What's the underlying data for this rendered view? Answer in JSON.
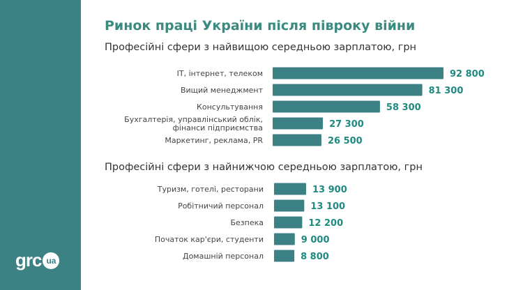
{
  "title": "Ринок праці України після півроку війни",
  "logo": {
    "text": "grc",
    "badge": "ua"
  },
  "colors": {
    "bar": "#3c8284",
    "value": "#1f8a80",
    "sidebar": "#3c8284"
  },
  "chart_data": [
    {
      "type": "bar",
      "orientation": "horizontal",
      "title": "Професійні сфери з найвищою середньою зарплатою, грн",
      "categories": [
        [
          "IT, інтернет, телеком"
        ],
        [
          "Вищий менеджмент"
        ],
        [
          "Консультування"
        ],
        [
          "Бухгалтерія, управлінський облік,",
          "фінанси підприємства"
        ],
        [
          "Маркетинг, реклама, PR"
        ]
      ],
      "values": [
        92800,
        81300,
        58300,
        27300,
        26500
      ],
      "value_labels": [
        "92 800",
        "81 300",
        "58 300",
        "27 300",
        "26 500"
      ]
    },
    {
      "type": "bar",
      "orientation": "horizontal",
      "title": "Професійні сфери з найнижчою середньою зарплатою, грн",
      "categories": [
        [
          "Туризм, готелі, ресторани"
        ],
        [
          "Робітничий персонал"
        ],
        [
          "Безпека"
        ],
        [
          "Початок кар'єри, студенти"
        ],
        [
          "Домашній персонал"
        ]
      ],
      "values": [
        13900,
        13100,
        12200,
        9000,
        8800
      ],
      "value_labels": [
        "13 900",
        "13 100",
        "12 200",
        "9 000",
        "8 800"
      ]
    }
  ]
}
